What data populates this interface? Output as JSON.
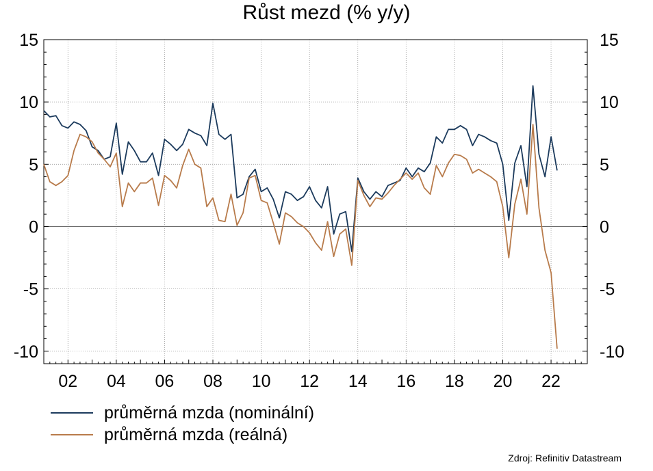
{
  "title": "Růst mezd (% y/y)",
  "source": "Zdroj: Refinitiv Datastream",
  "chart_data": {
    "type": "line",
    "title": "Růst mezd (% y/y)",
    "x_start_year": 2001,
    "x_period": "quarterly",
    "xlim": [
      2001,
      2023.5
    ],
    "ylim": [
      -11,
      15
    ],
    "y_ticks": [
      15,
      10,
      5,
      0,
      -5,
      -10
    ],
    "x_ticks": [
      {
        "year": 2002,
        "label": "02"
      },
      {
        "year": 2004,
        "label": "04"
      },
      {
        "year": 2006,
        "label": "06"
      },
      {
        "year": 2008,
        "label": "08"
      },
      {
        "year": 2010,
        "label": "10"
      },
      {
        "year": 2012,
        "label": "12"
      },
      {
        "year": 2014,
        "label": "14"
      },
      {
        "year": 2016,
        "label": "16"
      },
      {
        "year": 2018,
        "label": "18"
      },
      {
        "year": 2020,
        "label": "20"
      },
      {
        "year": 2022,
        "label": "22"
      }
    ],
    "grid": true,
    "legend_position": "bottom-left",
    "series": [
      {
        "name": "průměrná mzda (nominální)",
        "color": "#1b3a5c",
        "values": [
          9.3,
          8.8,
          8.9,
          8.1,
          7.9,
          8.4,
          8.2,
          7.7,
          6.4,
          6.1,
          5.4,
          5.6,
          8.3,
          4.2,
          6.8,
          6.1,
          5.2,
          5.2,
          5.9,
          4.1,
          7.0,
          6.6,
          6.1,
          6.6,
          7.8,
          7.5,
          7.3,
          6.5,
          9.9,
          7.4,
          7.0,
          7.4,
          2.3,
          2.6,
          4.0,
          4.6,
          2.8,
          3.1,
          2.2,
          0.7,
          2.8,
          2.6,
          2.1,
          2.4,
          3.2,
          2.1,
          1.5,
          3.2,
          -0.6,
          1.0,
          1.2,
          -2.0,
          3.9,
          2.8,
          2.2,
          2.8,
          2.4,
          3.3,
          3.5,
          3.7,
          4.7,
          4.0,
          4.7,
          4.4,
          5.1,
          7.2,
          6.7,
          7.8,
          7.8,
          8.1,
          7.8,
          6.5,
          7.4,
          7.2,
          6.9,
          6.7,
          5.0,
          0.5,
          5.1,
          6.5,
          3.2,
          11.3,
          5.8,
          4.0,
          7.2,
          4.5
        ]
      },
      {
        "name": "průměrná mzda (reálná)",
        "color": "#b87b4b",
        "values": [
          5.0,
          3.6,
          3.3,
          3.6,
          4.1,
          6.1,
          7.4,
          7.2,
          6.8,
          5.9,
          5.4,
          4.8,
          5.9,
          1.6,
          3.5,
          2.8,
          3.5,
          3.5,
          3.9,
          1.7,
          4.1,
          3.7,
          3.1,
          4.9,
          6.2,
          5.0,
          4.7,
          1.6,
          2.3,
          0.5,
          0.4,
          2.6,
          0.1,
          1.1,
          3.9,
          4.1,
          2.1,
          1.9,
          0.3,
          -1.4,
          1.1,
          0.8,
          0.3,
          0.0,
          -0.5,
          -1.3,
          -1.9,
          0.4,
          -2.4,
          -0.6,
          -0.2,
          -3.1,
          3.7,
          2.5,
          1.6,
          2.3,
          2.2,
          2.7,
          3.3,
          3.8,
          4.3,
          3.8,
          4.3,
          3.1,
          2.6,
          4.9,
          4.0,
          5.1,
          5.8,
          5.7,
          5.4,
          4.3,
          4.6,
          4.3,
          4.0,
          3.6,
          1.6,
          -2.5,
          1.8,
          3.8,
          1.0,
          8.2,
          1.5,
          -1.9,
          -3.7,
          -9.8
        ]
      }
    ]
  }
}
